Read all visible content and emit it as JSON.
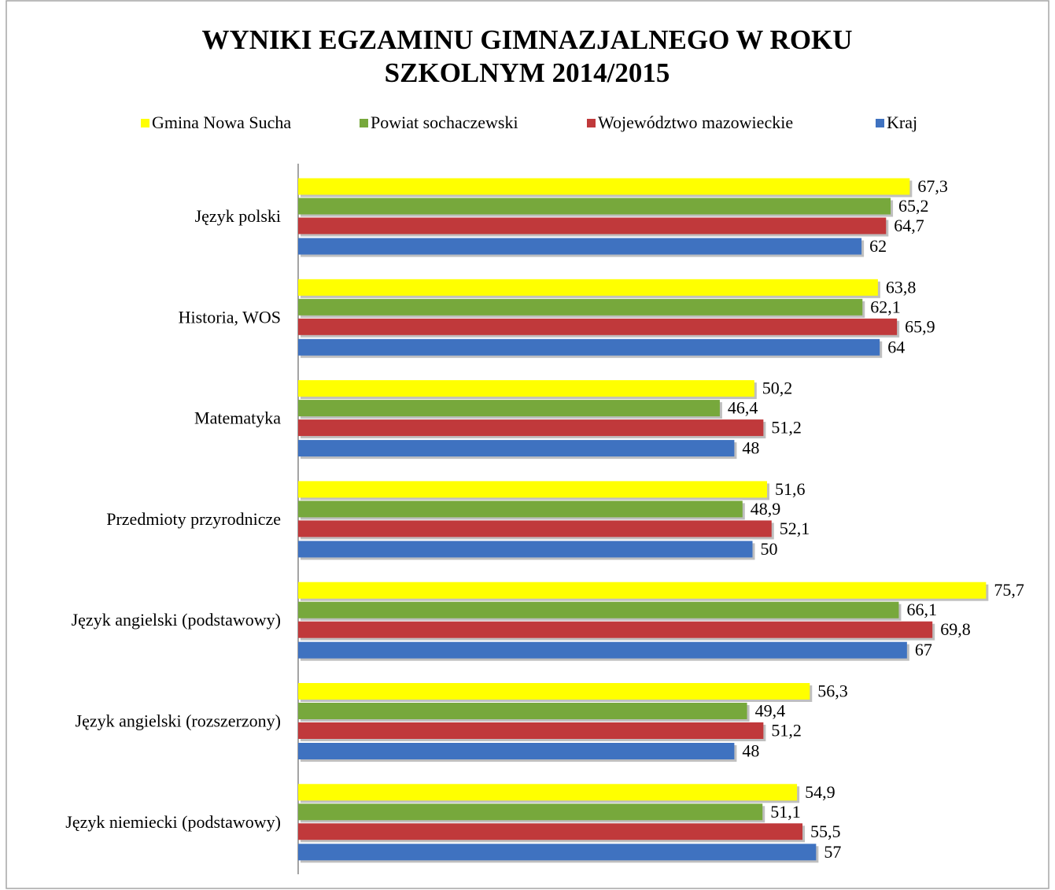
{
  "chart_data": {
    "type": "bar",
    "orientation": "horizontal",
    "title": "WYNIKI EGZAMINU GIMNAZJALNEGO W ROKU SZKOLNYM 2014/2015",
    "categories": [
      "Język polski",
      "Historia, WOS",
      "Matematyka",
      "Przedmioty przyrodnicze",
      "Język angielski (podstawowy)",
      "Język angielski (rozszerzony)",
      "Język niemiecki (podstawowy)"
    ],
    "series": [
      {
        "name": "Gmina Nowa Sucha",
        "color": "#ffff00",
        "values": [
          67.3,
          63.8,
          50.2,
          51.6,
          75.7,
          56.3,
          54.9
        ],
        "value_labels": [
          "67,3",
          "63,8",
          "50,2",
          "51,6",
          "75,7",
          "56,3",
          "54,9"
        ]
      },
      {
        "name": "Powiat sochaczewski",
        "color": "#77a83c",
        "values": [
          65.2,
          62.1,
          46.4,
          48.9,
          66.1,
          49.4,
          51.1
        ],
        "value_labels": [
          "65,2",
          "62,1",
          "46,4",
          "48,9",
          "66,1",
          "49,4",
          "51,1"
        ]
      },
      {
        "name": "Województwo mazowieckie",
        "color": "#c0393b",
        "values": [
          64.7,
          65.9,
          51.2,
          52.1,
          69.8,
          51.2,
          55.5
        ],
        "value_labels": [
          "64,7",
          "65,9",
          "51,2",
          "52,1",
          "69,8",
          "51,2",
          "55,5"
        ]
      },
      {
        "name": "Kraj",
        "color": "#3f72c0",
        "values": [
          62,
          64,
          48,
          50,
          67,
          48,
          57
        ],
        "value_labels": [
          "62",
          "64",
          "48",
          "50",
          "67",
          "48",
          "57"
        ]
      }
    ],
    "xlim": [
      0,
      80
    ],
    "legend": "top"
  }
}
